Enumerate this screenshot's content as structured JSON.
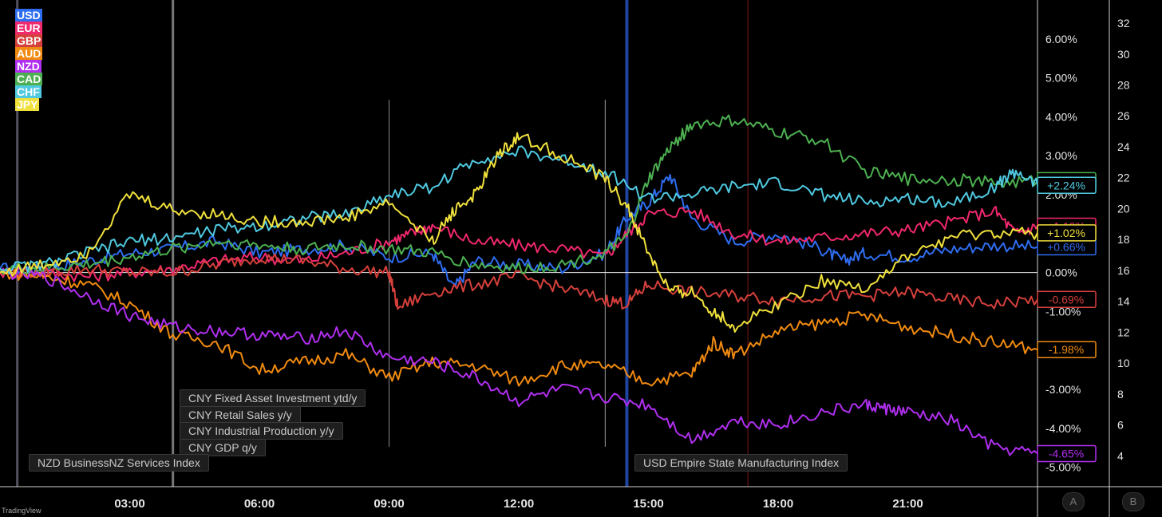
{
  "legend": [
    {
      "label": "USD",
      "color": "#2f6df0"
    },
    {
      "label": "EUR",
      "color": "#f0286e"
    },
    {
      "label": "GBP",
      "color": "#d6403c"
    },
    {
      "label": "AUD",
      "color": "#f08a10"
    },
    {
      "label": "NZD",
      "color": "#b02ff0"
    },
    {
      "label": "CAD",
      "color": "#4cb050"
    },
    {
      "label": "CHF",
      "color": "#4fc9e0"
    },
    {
      "label": "JPY",
      "color": "#f0e03c"
    }
  ],
  "events": {
    "e1": "CNY Fixed Asset Investment ytd/y",
    "e2": "CNY Retail Sales y/y",
    "e3": "CNY Industrial Production y/y",
    "e4": "CNY GDP q/y",
    "e5": "NZD BusinessNZ Services Index",
    "e6": "USD Empire State Manufacturing Index"
  },
  "axis_buttons": {
    "a": "A",
    "b": "B"
  },
  "branding": "TradingView",
  "chart_data": {
    "type": "line",
    "x_range_hours": [
      0,
      24
    ],
    "xtick_values": [
      3,
      6,
      9,
      12,
      15,
      18,
      21
    ],
    "xtick_labels": [
      "03:00",
      "06:00",
      "09:00",
      "12:00",
      "15:00",
      "18:00",
      "21:00"
    ],
    "ylim": [
      -5.5,
      7.0
    ],
    "ytick_values": [
      6,
      5,
      4,
      3,
      2,
      1,
      0,
      -1,
      -2,
      -3,
      -4,
      -5
    ],
    "ytick_labels": [
      "6.00%",
      "5.00%",
      "4.00%",
      "3.00%",
      "2.00%",
      "1.00%",
      "0.00%",
      "-1.00%",
      "-2.00%",
      "-3.00%",
      "-4.00%",
      "-5.00%"
    ],
    "y2_ticks": [
      "32",
      "30",
      "28",
      "26",
      "24",
      "22",
      "20",
      "18",
      "16",
      "14",
      "12",
      "10",
      "8",
      "6",
      "4"
    ],
    "y2_values": [
      32,
      30,
      28,
      26,
      24,
      22,
      20,
      18,
      16,
      14,
      12,
      10,
      8,
      6,
      4
    ],
    "y2lim": [
      2.0,
      33.5
    ],
    "event_lines_hours": [
      0.4,
      4.0,
      9.0,
      14.0,
      14.5,
      17.3
    ],
    "series": [
      {
        "name": "USD",
        "color": "#2f6df0",
        "last_label": "+0.66%",
        "last": 0.66,
        "points": [
          [
            0,
            0.1
          ],
          [
            1,
            0.1
          ],
          [
            2,
            0.3
          ],
          [
            3,
            0.5
          ],
          [
            4,
            0.6
          ],
          [
            5,
            0.8
          ],
          [
            6,
            0.5
          ],
          [
            7,
            0.6
          ],
          [
            8,
            0.7
          ],
          [
            9,
            0.4
          ],
          [
            10,
            0.5
          ],
          [
            10.5,
            -0.4
          ],
          [
            11,
            0.3
          ],
          [
            12,
            0.2
          ],
          [
            13,
            0.1
          ],
          [
            14,
            0.5
          ],
          [
            14.5,
            1.4
          ],
          [
            15,
            1.8
          ],
          [
            15.5,
            2.5
          ],
          [
            16,
            1.4
          ],
          [
            17,
            0.8
          ],
          [
            18,
            1.0
          ],
          [
            19,
            0.6
          ],
          [
            19.5,
            0.3
          ],
          [
            20,
            0.5
          ],
          [
            21,
            0.4
          ],
          [
            22,
            0.6
          ],
          [
            23,
            0.7
          ],
          [
            24,
            0.66
          ]
        ]
      },
      {
        "name": "EUR",
        "color": "#f0286e",
        "last_label": "+1.19%",
        "last": 1.19,
        "points": [
          [
            0,
            0.0
          ],
          [
            1,
            0.0
          ],
          [
            2,
            -0.1
          ],
          [
            3,
            0.0
          ],
          [
            4,
            0.1
          ],
          [
            5,
            0.3
          ],
          [
            6,
            0.4
          ],
          [
            7,
            0.3
          ],
          [
            8,
            0.5
          ],
          [
            9,
            0.8
          ],
          [
            9.5,
            1.0
          ],
          [
            10,
            1.2
          ],
          [
            11,
            0.8
          ],
          [
            12,
            0.7
          ],
          [
            13,
            0.6
          ],
          [
            14,
            0.4
          ],
          [
            14.5,
            1.0
          ],
          [
            15,
            1.5
          ],
          [
            16,
            1.6
          ],
          [
            17,
            1.0
          ],
          [
            18,
            0.8
          ],
          [
            19,
            0.9
          ],
          [
            20,
            1.0
          ],
          [
            21,
            1.1
          ],
          [
            22,
            1.3
          ],
          [
            23,
            1.6
          ],
          [
            23.5,
            1.0
          ],
          [
            24,
            1.19
          ]
        ]
      },
      {
        "name": "GBP",
        "color": "#d6403c",
        "last_label": "-0.69%",
        "last": -0.69,
        "points": [
          [
            0,
            0.0
          ],
          [
            1,
            0.0
          ],
          [
            2,
            0.1
          ],
          [
            3,
            0.0
          ],
          [
            4,
            0.0
          ],
          [
            5,
            0.2
          ],
          [
            6,
            0.4
          ],
          [
            7,
            0.3
          ],
          [
            8,
            0.1
          ],
          [
            9,
            0.0
          ],
          [
            9.2,
            -0.9
          ],
          [
            10,
            -0.5
          ],
          [
            11,
            -0.3
          ],
          [
            12,
            -0.1
          ],
          [
            13,
            -0.4
          ],
          [
            14,
            -0.7
          ],
          [
            14.5,
            -0.8
          ],
          [
            15,
            -0.3
          ],
          [
            16,
            -0.5
          ],
          [
            17,
            -0.6
          ],
          [
            18,
            -0.7
          ],
          [
            19,
            -0.6
          ],
          [
            20,
            -0.6
          ],
          [
            21,
            -0.5
          ],
          [
            22,
            -0.7
          ],
          [
            23,
            -0.8
          ],
          [
            24,
            -0.69
          ]
        ]
      },
      {
        "name": "AUD",
        "color": "#f08a10",
        "last_label": "-1.98%",
        "last": -1.98,
        "points": [
          [
            0,
            0.0
          ],
          [
            1,
            -0.1
          ],
          [
            2,
            -0.3
          ],
          [
            3,
            -0.8
          ],
          [
            4,
            -1.6
          ],
          [
            5,
            -1.8
          ],
          [
            6,
            -2.5
          ],
          [
            7,
            -2.3
          ],
          [
            8,
            -2.1
          ],
          [
            9,
            -2.7
          ],
          [
            10,
            -2.3
          ],
          [
            11,
            -2.4
          ],
          [
            12,
            -2.8
          ],
          [
            13,
            -2.4
          ],
          [
            14,
            -2.4
          ],
          [
            15,
            -2.8
          ],
          [
            16,
            -2.6
          ],
          [
            16.5,
            -1.8
          ],
          [
            17,
            -2.1
          ],
          [
            18,
            -1.5
          ],
          [
            19,
            -1.3
          ],
          [
            20,
            -1.1
          ],
          [
            21,
            -1.4
          ],
          [
            22,
            -1.6
          ],
          [
            23,
            -1.8
          ],
          [
            24,
            -1.98
          ]
        ]
      },
      {
        "name": "NZD",
        "color": "#b02ff0",
        "last_label": "-4.65%",
        "last": -4.65,
        "points": [
          [
            0,
            0.0
          ],
          [
            1,
            -0.1
          ],
          [
            2,
            -0.6
          ],
          [
            3,
            -1.1
          ],
          [
            4,
            -1.4
          ],
          [
            5,
            -1.5
          ],
          [
            6,
            -1.6
          ],
          [
            7,
            -1.7
          ],
          [
            8,
            -1.5
          ],
          [
            9,
            -2.2
          ],
          [
            10,
            -2.3
          ],
          [
            11,
            -2.7
          ],
          [
            12,
            -3.3
          ],
          [
            13,
            -3.0
          ],
          [
            14,
            -3.2
          ],
          [
            15,
            -3.4
          ],
          [
            16,
            -4.3
          ],
          [
            17,
            -3.8
          ],
          [
            18,
            -3.9
          ],
          [
            19,
            -3.6
          ],
          [
            20,
            -3.4
          ],
          [
            20.5,
            -3.5
          ],
          [
            21,
            -3.6
          ],
          [
            22,
            -3.8
          ],
          [
            23,
            -4.5
          ],
          [
            24,
            -4.65
          ]
        ]
      },
      {
        "name": "CAD",
        "color": "#4cb050",
        "last_label": "+2.36%",
        "last": 2.36,
        "points": [
          [
            0,
            0.1
          ],
          [
            1,
            0.1
          ],
          [
            2,
            0.2
          ],
          [
            3,
            0.4
          ],
          [
            4,
            0.6
          ],
          [
            5,
            0.8
          ],
          [
            6,
            0.7
          ],
          [
            7,
            0.6
          ],
          [
            8,
            0.7
          ],
          [
            9,
            0.6
          ],
          [
            10,
            0.5
          ],
          [
            11,
            0.2
          ],
          [
            12,
            0.1
          ],
          [
            13,
            0.2
          ],
          [
            14,
            0.5
          ],
          [
            14.5,
            0.9
          ],
          [
            15,
            2.4
          ],
          [
            15.5,
            3.2
          ],
          [
            16,
            3.8
          ],
          [
            17,
            3.9
          ],
          [
            18,
            3.6
          ],
          [
            19,
            3.4
          ],
          [
            20,
            2.6
          ],
          [
            21,
            2.4
          ],
          [
            22,
            2.4
          ],
          [
            23,
            2.3
          ],
          [
            24,
            2.36
          ]
        ]
      },
      {
        "name": "CHF",
        "color": "#4fc9e0",
        "last_label": "+2.24%",
        "last": 2.24,
        "points": [
          [
            0,
            0.1
          ],
          [
            1,
            0.2
          ],
          [
            2,
            0.5
          ],
          [
            3,
            0.8
          ],
          [
            4,
            0.9
          ],
          [
            5,
            1.1
          ],
          [
            6,
            1.2
          ],
          [
            7,
            1.4
          ],
          [
            8,
            1.5
          ],
          [
            9,
            2.0
          ],
          [
            10,
            2.2
          ],
          [
            11,
            2.9
          ],
          [
            12,
            3.1
          ],
          [
            13,
            2.9
          ],
          [
            14,
            2.6
          ],
          [
            15,
            1.9
          ],
          [
            16,
            2.0
          ],
          [
            17,
            2.2
          ],
          [
            18,
            2.3
          ],
          [
            19,
            2.0
          ],
          [
            20,
            1.8
          ],
          [
            21,
            1.9
          ],
          [
            22,
            1.8
          ],
          [
            23,
            2.2
          ],
          [
            23.5,
            2.6
          ],
          [
            24,
            2.24
          ]
        ]
      },
      {
        "name": "JPY",
        "color": "#f0e03c",
        "last_label": "+1.02%",
        "last": 1.02,
        "points": [
          [
            0,
            0.0
          ],
          [
            1,
            0.2
          ],
          [
            2,
            0.5
          ],
          [
            3,
            2.0
          ],
          [
            4,
            1.6
          ],
          [
            5,
            1.5
          ],
          [
            6,
            1.3
          ],
          [
            7,
            1.3
          ],
          [
            8,
            1.4
          ],
          [
            9,
            1.8
          ],
          [
            10,
            0.8
          ],
          [
            10.5,
            1.6
          ],
          [
            11,
            2.0
          ],
          [
            11.5,
            3.0
          ],
          [
            12,
            3.5
          ],
          [
            13,
            3.0
          ],
          [
            14,
            2.4
          ],
          [
            14.5,
            1.7
          ],
          [
            15,
            0.5
          ],
          [
            15.5,
            -0.5
          ],
          [
            16,
            -0.5
          ],
          [
            16.5,
            -1.0
          ],
          [
            17,
            -1.4
          ],
          [
            18,
            -0.8
          ],
          [
            19,
            -0.2
          ],
          [
            20,
            -0.4
          ],
          [
            21,
            0.4
          ],
          [
            22,
            0.9
          ],
          [
            23,
            1.0
          ],
          [
            24,
            1.02
          ]
        ]
      }
    ]
  }
}
